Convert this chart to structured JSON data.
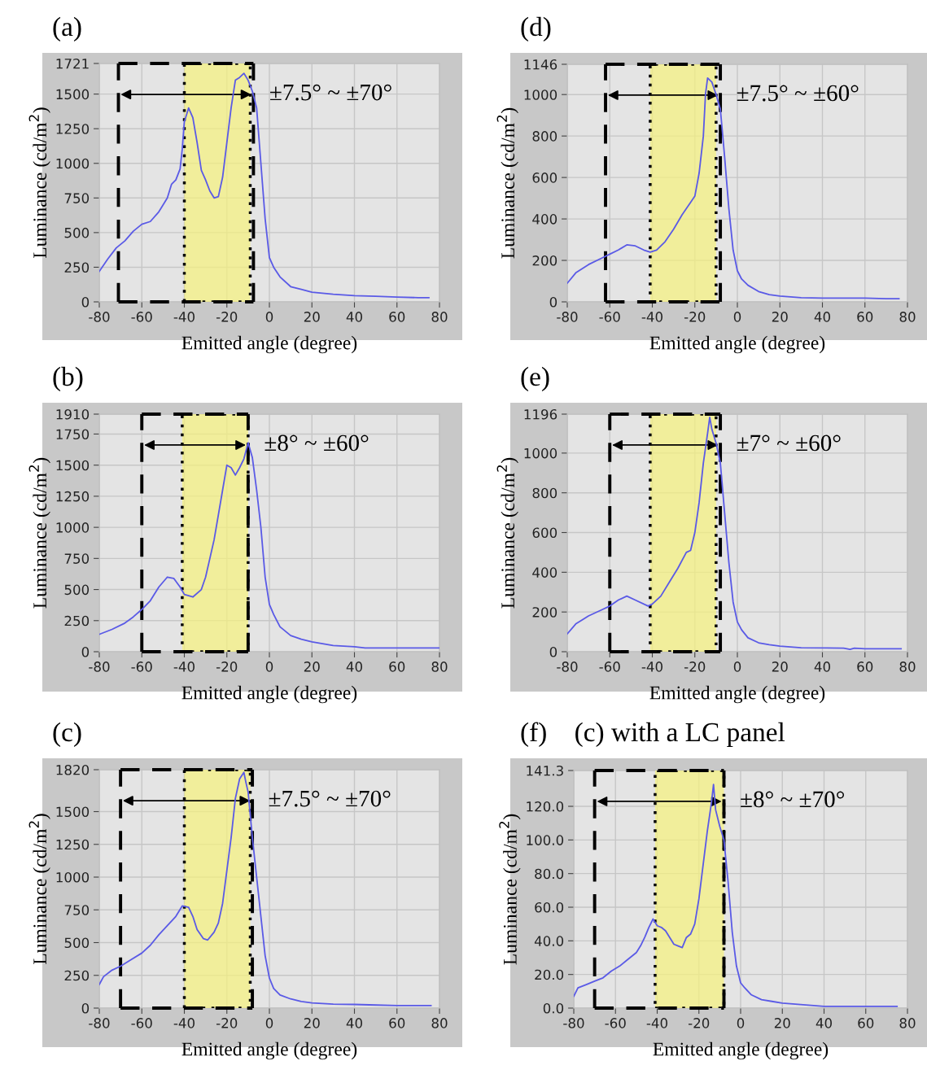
{
  "chart_data": [
    {
      "type": "line",
      "title": "(a)",
      "xlabel": "Emitted angle (degree)",
      "ylabel": "Luminance (cd/m$^{2}$)",
      "xlim": [
        -80,
        80
      ],
      "xticks": [
        -80,
        -60,
        -40,
        -20,
        0,
        20,
        40,
        60,
        80
      ],
      "ylim": [
        0,
        1721
      ],
      "yticks": [
        0,
        250,
        500,
        750,
        1000,
        1250,
        1500,
        1721
      ],
      "grid": true,
      "annotations": [
        "±7.5° ~ ±70°"
      ],
      "bands": [
        {
          "axis": "x",
          "from": -40,
          "to": -9,
          "color": "#f6f27c"
        }
      ],
      "ref_lines": [
        {
          "axis": "x",
          "value": -71,
          "line_style": "dashed"
        },
        {
          "axis": "x",
          "value": -7.5,
          "line_style": "dashed"
        }
      ],
      "series": [
        {
          "color": "#5a5ae6",
          "x": [
            -80,
            -76,
            -72,
            -68,
            -64,
            -60,
            -56,
            -52,
            -48,
            -46,
            -44,
            -42,
            -41,
            -40,
            -38,
            -36,
            -34,
            -32,
            -30,
            -28,
            -26,
            -24,
            -22,
            -20,
            -18,
            -16,
            -14,
            -12,
            -10,
            -8,
            -6,
            -4,
            -2,
            0,
            2,
            5,
            10,
            15,
            20,
            30,
            40,
            50,
            60,
            70,
            75
          ],
          "values": [
            220,
            310,
            390,
            440,
            510,
            560,
            580,
            650,
            750,
            850,
            880,
            960,
            1100,
            1300,
            1400,
            1330,
            1150,
            950,
            880,
            800,
            750,
            760,
            900,
            1150,
            1400,
            1600,
            1620,
            1650,
            1600,
            1520,
            1400,
            1000,
            600,
            320,
            250,
            180,
            110,
            90,
            70,
            55,
            45,
            40,
            35,
            30,
            30
          ]
        }
      ]
    },
    {
      "type": "line",
      "title": "(d)",
      "xlabel": "Emitted angle (degree)",
      "ylabel": "Luminance (cd/m$^{2}$)",
      "xlim": [
        -80,
        80
      ],
      "xticks": [
        -80,
        -60,
        -40,
        -20,
        0,
        20,
        40,
        60,
        80
      ],
      "ylim": [
        0,
        1146
      ],
      "yticks": [
        0,
        200,
        400,
        600,
        800,
        1000,
        1146
      ],
      "grid": true,
      "annotations": [
        "±7.5° ~ ±60°"
      ],
      "bands": [
        {
          "axis": "x",
          "from": -41,
          "to": -10,
          "color": "#f6f27c"
        }
      ],
      "ref_lines": [
        {
          "axis": "x",
          "value": -62,
          "line_style": "dashed"
        },
        {
          "axis": "x",
          "value": -8,
          "line_style": "dashed"
        }
      ],
      "series": [
        {
          "color": "#5a5ae6",
          "x": [
            -80,
            -76,
            -70,
            -64,
            -60,
            -56,
            -52,
            -48,
            -44,
            -41,
            -38,
            -34,
            -30,
            -26,
            -22,
            -20,
            -18,
            -16,
            -15,
            -14,
            -12,
            -10,
            -8,
            -6,
            -4,
            -2,
            0,
            2,
            5,
            10,
            15,
            20,
            30,
            40,
            60,
            70,
            76
          ],
          "values": [
            90,
            140,
            180,
            210,
            230,
            250,
            275,
            270,
            250,
            240,
            250,
            290,
            350,
            420,
            480,
            510,
            620,
            800,
            1000,
            1080,
            1060,
            1000,
            930,
            700,
            450,
            250,
            150,
            110,
            80,
            50,
            35,
            28,
            20,
            18,
            18,
            15,
            15
          ]
        }
      ]
    },
    {
      "type": "line",
      "title": "(b)",
      "xlabel": "Emitted angle (degree)",
      "ylabel": "Luminance (cd/m$^{2}$)",
      "xlim": [
        -80,
        80
      ],
      "xticks": [
        -80,
        -60,
        -40,
        -20,
        0,
        20,
        40,
        60,
        80
      ],
      "ylim": [
        0,
        1910
      ],
      "yticks": [
        0,
        250,
        500,
        750,
        1000,
        1250,
        1500,
        1750,
        1910
      ],
      "grid": true,
      "annotations": [
        "±8° ~ ±60°"
      ],
      "bands": [
        {
          "axis": "x",
          "from": -41,
          "to": -10,
          "color": "#f6f27c"
        }
      ],
      "ref_lines": [
        {
          "axis": "x",
          "value": -60,
          "line_style": "dashed"
        },
        {
          "axis": "x",
          "value": -10,
          "line_style": "dashed"
        }
      ],
      "series": [
        {
          "color": "#5a5ae6",
          "x": [
            -80,
            -74,
            -68,
            -64,
            -60,
            -56,
            -52,
            -48,
            -45,
            -42,
            -40,
            -36,
            -32,
            -30,
            -28,
            -26,
            -24,
            -22,
            -20,
            -18,
            -16,
            -14,
            -12,
            -10,
            -8,
            -6,
            -4,
            -2,
            0,
            2,
            5,
            10,
            15,
            20,
            30,
            40,
            45,
            60,
            80
          ],
          "values": [
            140,
            180,
            230,
            280,
            340,
            410,
            520,
            600,
            590,
            520,
            460,
            440,
            500,
            600,
            750,
            900,
            1100,
            1300,
            1500,
            1480,
            1420,
            1480,
            1550,
            1680,
            1560,
            1300,
            1000,
            600,
            380,
            300,
            200,
            130,
            100,
            80,
            50,
            40,
            30,
            30,
            30
          ]
        }
      ]
    },
    {
      "type": "line",
      "title": "(e)",
      "xlabel": "Emitted angle (degree)",
      "ylabel": "Luminance (cd/m$^{2}$)",
      "xlim": [
        -80,
        80
      ],
      "xticks": [
        -80,
        -60,
        -40,
        -20,
        0,
        20,
        40,
        60,
        80
      ],
      "ylim": [
        0,
        1196
      ],
      "yticks": [
        0,
        200,
        400,
        600,
        800,
        1000,
        1196
      ],
      "grid": true,
      "annotations": [
        "±7° ~ ±60°"
      ],
      "bands": [
        {
          "axis": "x",
          "from": -41,
          "to": -10,
          "color": "#f6f27c"
        }
      ],
      "ref_lines": [
        {
          "axis": "x",
          "value": -60,
          "line_style": "dashed"
        },
        {
          "axis": "x",
          "value": -8,
          "line_style": "dashed"
        }
      ],
      "series": [
        {
          "color": "#5a5ae6",
          "x": [
            -80,
            -76,
            -70,
            -64,
            -60,
            -56,
            -52,
            -48,
            -42,
            -40,
            -36,
            -32,
            -28,
            -24,
            -22,
            -20,
            -18,
            -16,
            -14,
            -13,
            -12,
            -10,
            -8,
            -6,
            -4,
            -2,
            0,
            2,
            5,
            10,
            15,
            20,
            30,
            50,
            53,
            55,
            60,
            77
          ],
          "values": [
            90,
            140,
            180,
            210,
            230,
            260,
            280,
            260,
            230,
            240,
            280,
            350,
            420,
            500,
            510,
            600,
            750,
            950,
            1100,
            1180,
            1120,
            1050,
            950,
            700,
            450,
            250,
            150,
            110,
            70,
            45,
            35,
            28,
            20,
            18,
            12,
            18,
            15,
            15
          ]
        }
      ]
    },
    {
      "type": "line",
      "title": "(c)",
      "xlabel": "Emitted angle (degree)",
      "ylabel": "Luminance (cd/m$^{2}$)",
      "xlim": [
        -80,
        80
      ],
      "xticks": [
        -80,
        -60,
        -40,
        -20,
        0,
        20,
        40,
        60,
        80
      ],
      "ylim": [
        0,
        1820
      ],
      "yticks": [
        0,
        250,
        500,
        750,
        1000,
        1250,
        1500,
        1820
      ],
      "grid": true,
      "annotations": [
        "±7.5° ~ ±70°"
      ],
      "bands": [
        {
          "axis": "x",
          "from": -40,
          "to": -9,
          "color": "#f6f27c"
        }
      ],
      "ref_lines": [
        {
          "axis": "x",
          "value": -70,
          "line_style": "dashed"
        },
        {
          "axis": "x",
          "value": -8,
          "line_style": "dashed"
        }
      ],
      "series": [
        {
          "color": "#5a5ae6",
          "x": [
            -80,
            -78,
            -74,
            -70,
            -66,
            -60,
            -56,
            -52,
            -48,
            -44,
            -41,
            -38,
            -36,
            -34,
            -31,
            -29,
            -26,
            -24,
            -22,
            -20,
            -18,
            -16,
            -14,
            -12,
            -11,
            -10,
            -8,
            -6,
            -4,
            -2,
            0,
            2,
            5,
            10,
            15,
            20,
            30,
            40,
            47,
            60,
            76
          ],
          "values": [
            180,
            240,
            290,
            320,
            360,
            420,
            480,
            560,
            630,
            700,
            780,
            770,
            700,
            600,
            530,
            520,
            580,
            650,
            800,
            1050,
            1300,
            1600,
            1750,
            1800,
            1720,
            1650,
            1300,
            1000,
            700,
            400,
            230,
            150,
            100,
            70,
            50,
            40,
            30,
            28,
            25,
            20,
            20
          ]
        }
      ]
    },
    {
      "type": "line",
      "title": "(f)    (c) with a LC panel",
      "xlabel": "Emitted angle (degree)",
      "ylabel": "Luminance (cd/m$^{2}$)",
      "xlim": [
        -80,
        80
      ],
      "xticks": [
        -80,
        -60,
        -40,
        -20,
        0,
        20,
        40,
        60,
        80
      ],
      "ylim": [
        0,
        141.3
      ],
      "yticks": [
        {
          "value": 0,
          "label": "0.0"
        },
        {
          "value": 20,
          "label": "20.0"
        },
        {
          "value": 40,
          "label": "40.0"
        },
        {
          "value": 60,
          "label": "60.0"
        },
        {
          "value": 80,
          "label": "80.0"
        },
        {
          "value": 100,
          "label": "100.0"
        },
        {
          "value": 120,
          "label": "120.0"
        },
        141.3
      ],
      "grid": true,
      "annotations": [
        "±8° ~ ±70°"
      ],
      "bands": [
        {
          "axis": "x",
          "from": -41,
          "to": -8,
          "color": "#f6f27c"
        }
      ],
      "ref_lines": [
        {
          "axis": "x",
          "value": -70,
          "line_style": "dashed"
        },
        {
          "axis": "x",
          "value": -8,
          "line_style": "dashed"
        }
      ],
      "series": [
        {
          "color": "#5a5ae6",
          "x": [
            -80,
            -78,
            -74,
            -70,
            -66,
            -62,
            -58,
            -54,
            -50,
            -48,
            -46,
            -44,
            -42,
            -40,
            -38,
            -36,
            -34,
            -32,
            -30,
            -28,
            -26,
            -24,
            -22,
            -20,
            -18,
            -16,
            -14,
            -13,
            -12,
            -10,
            -8,
            -6,
            -4,
            -2,
            0,
            2,
            5,
            10,
            15,
            20,
            30,
            40,
            60,
            75
          ],
          "values": [
            7,
            12,
            14,
            16,
            18,
            22,
            25,
            29,
            33,
            37,
            42,
            48,
            53,
            49,
            48,
            46,
            42,
            38,
            37,
            36,
            42,
            44,
            50,
            65,
            85,
            105,
            122,
            133,
            118,
            108,
            100,
            75,
            45,
            25,
            15,
            12,
            8,
            5,
            4,
            3,
            2,
            1,
            1,
            1
          ]
        }
      ]
    }
  ]
}
